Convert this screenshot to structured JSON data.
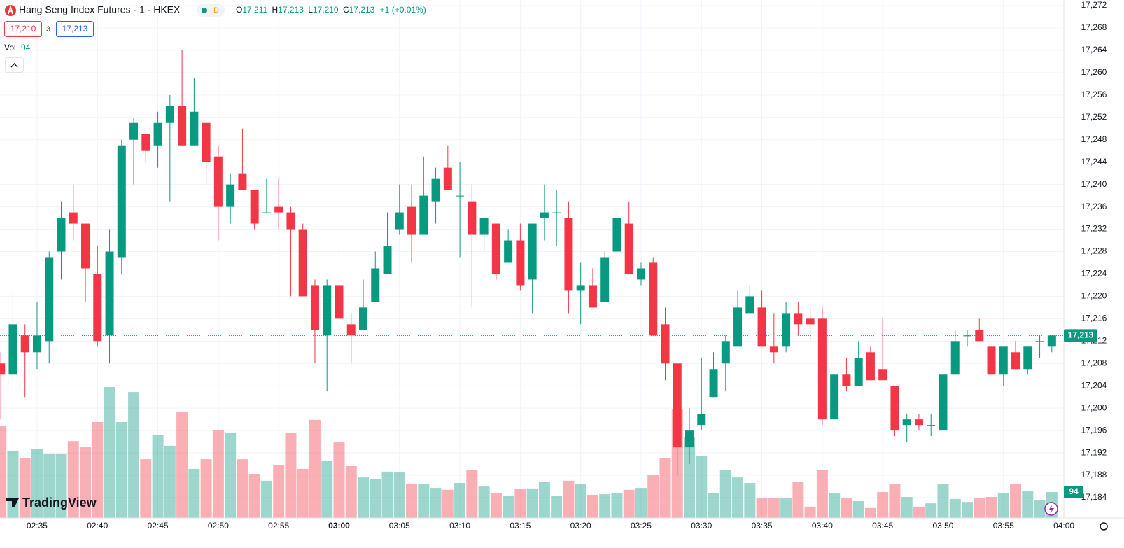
{
  "header": {
    "title": "Hang Seng Index Futures · 1 · HKEX",
    "badge": "D",
    "ohlc": [
      {
        "key": "O",
        "value": "17,211"
      },
      {
        "key": "H",
        "value": "17,213"
      },
      {
        "key": "L",
        "value": "17,210"
      },
      {
        "key": "C",
        "value": "17,213"
      }
    ],
    "change": "+1 (+0.01%)",
    "bid": "17,210",
    "spread": "3",
    "ask": "17,213",
    "volume_label": "Vol"
  },
  "watermark": "TradingView",
  "chart_data": {
    "type": "candlestick",
    "categories": [
      null,
      null,
      null,
      "02:35",
      null,
      null,
      null,
      null,
      "02:40",
      null,
      null,
      null,
      null,
      "02:45",
      null,
      null,
      null,
      null,
      "02:50",
      null,
      null,
      null,
      null,
      "02:55",
      null,
      null,
      null,
      null,
      "03:00",
      null,
      null,
      null,
      null,
      "03:05",
      null,
      null,
      null,
      null,
      "03:10",
      null,
      null,
      null,
      null,
      "03:15",
      null,
      null,
      null,
      null,
      "03:20",
      null,
      null,
      null,
      null,
      "03:25",
      null,
      null,
      null,
      null,
      "03:30",
      null,
      null,
      null,
      null,
      "03:35",
      null,
      null,
      null,
      null,
      "03:40",
      null,
      null,
      null,
      null,
      "03:45",
      null,
      null,
      null,
      null,
      "03:50",
      null,
      null,
      null,
      null,
      "03:55",
      null,
      null,
      null,
      null
    ],
    "x_edge_label": "04:00",
    "open": [
      17208,
      17206,
      17213,
      17210,
      17212,
      17228,
      17235,
      17233,
      17224,
      17213,
      17227,
      17248,
      17249,
      17247,
      17251,
      17254,
      17247,
      17251,
      17245,
      17236,
      17242,
      17239,
      17235,
      17236,
      17235,
      17232,
      17222,
      17213,
      17222,
      17215,
      17214,
      17219,
      17224,
      17232,
      17236,
      17231,
      17237,
      17243,
      17238,
      17237,
      17231,
      17233,
      17226,
      17230,
      17223,
      17234,
      17235,
      17234,
      17221,
      17222,
      17219,
      17228,
      17233,
      17223,
      17226,
      17215,
      17208,
      17193,
      17197,
      17202,
      17208,
      17211,
      17217,
      17218,
      17211,
      17211,
      17217,
      17216,
      17216,
      17198,
      17206,
      17204,
      17210,
      17207,
      17204,
      17197,
      17198,
      17197,
      17196,
      17206,
      17213,
      17214,
      17211,
      17206,
      17210,
      17207,
      17212,
      17211
    ],
    "high": [
      17210,
      17221,
      17215,
      17219,
      17228,
      17237,
      17240,
      17233,
      17229,
      17232,
      17248,
      17252,
      17249,
      17253,
      17256,
      17264,
      17259,
      17251,
      17247,
      17242,
      17250,
      17239,
      17241,
      17241,
      17236,
      17233,
      17223,
      17223,
      17229,
      17217,
      17223,
      17228,
      17235,
      17240,
      17240,
      17245,
      17243,
      17247,
      17244,
      17240,
      17234,
      17233,
      17232,
      17233,
      17233,
      17240,
      17239,
      17237,
      17226,
      17225,
      17228,
      17235,
      17237,
      17226,
      17227,
      17218,
      17208,
      17200,
      17209,
      17210,
      17213,
      17221,
      17222,
      17221,
      17217,
      17219,
      17219,
      17218,
      17218,
      17206,
      17209,
      17212,
      17211,
      17216,
      17204,
      17199,
      17199,
      17199,
      17210,
      17214,
      17214,
      17216,
      17211,
      17211,
      17212,
      17211,
      17213,
      17213
    ],
    "low": [
      17198,
      17202,
      17202,
      17207,
      17208,
      17223,
      17230,
      17219,
      17211,
      17208,
      17224,
      17240,
      17244,
      17243,
      17237,
      17247,
      17247,
      17240,
      17230,
      17233,
      17239,
      17232,
      17235,
      17232,
      17220,
      17220,
      17208,
      17203,
      17216,
      17208,
      17214,
      17219,
      17224,
      17231,
      17226,
      17231,
      17233,
      17239,
      17227,
      17218,
      17228,
      17223,
      17226,
      17221,
      17217,
      17230,
      17229,
      17217,
      17215,
      17218,
      17219,
      17228,
      17224,
      17222,
      17213,
      17205,
      17188,
      17190,
      17196,
      17202,
      17203,
      17211,
      17217,
      17211,
      17208,
      17210,
      17213,
      17212,
      17197,
      17198,
      17203,
      17204,
      17205,
      17205,
      17195,
      17194,
      17196,
      17195,
      17194,
      17206,
      17211,
      17212,
      17206,
      17204,
      17207,
      17206,
      17209,
      17210
    ],
    "close": [
      17206,
      17215,
      17210,
      17213,
      17227,
      17234,
      17233,
      17225,
      17212,
      17228,
      17247,
      17251,
      17246,
      17251,
      17254,
      17247,
      17253,
      17244,
      17236,
      17240,
      17239,
      17233,
      17235,
      17235,
      17232,
      17220,
      17214,
      17222,
      17216,
      17213,
      17218,
      17225,
      17229,
      17235,
      17231,
      17238,
      17241,
      17239,
      17238,
      17231,
      17234,
      17224,
      17230,
      17222,
      17233,
      17235,
      17235,
      17221,
      17222,
      17218,
      17227,
      17234,
      17224,
      17225,
      17213,
      17208,
      17193,
      17196,
      17199,
      17207,
      17212,
      17218,
      17220,
      17211,
      17210,
      17217,
      17215,
      17215,
      17198,
      17206,
      17204,
      17209,
      17205,
      17205,
      17196,
      17198,
      17197,
      17197,
      17206,
      17212,
      17213,
      17212,
      17206,
      17211,
      17207,
      17211,
      17212,
      17213
    ],
    "volume": [
      335,
      244,
      216,
      251,
      234,
      234,
      279,
      257,
      348,
      475,
      348,
      457,
      213,
      300,
      262,
      384,
      178,
      213,
      320,
      310,
      213,
      160,
      135,
      193,
      310,
      178,
      356,
      208,
      274,
      188,
      147,
      142,
      168,
      165,
      122,
      122,
      109,
      102,
      127,
      173,
      114,
      89,
      81,
      104,
      107,
      132,
      79,
      135,
      124,
      84,
      86,
      89,
      102,
      109,
      157,
      218,
      394,
      292,
      226,
      89,
      175,
      147,
      127,
      71,
      71,
      71,
      132,
      41,
      173,
      91,
      71,
      61,
      36,
      94,
      122,
      76,
      41,
      53,
      122,
      69,
      58,
      71,
      76,
      91,
      122,
      99,
      64,
      94
    ],
    "up_color": "#089981",
    "down_color": "#f23645",
    "ylim": [
      17184,
      17272
    ],
    "yticks": [
      {
        "value": 17184,
        "label": "17,184"
      },
      {
        "value": 17188,
        "label": "17,188"
      },
      {
        "value": 17192,
        "label": "17,192"
      },
      {
        "value": 17196,
        "label": "17,196"
      },
      {
        "value": 17200,
        "label": "17,200"
      },
      {
        "value": 17204,
        "label": "17,204"
      },
      {
        "value": 17208,
        "label": "17,208"
      },
      {
        "value": 17212,
        "label": "17,212"
      },
      {
        "value": 17216,
        "label": "17,216"
      },
      {
        "value": 17220,
        "label": "17,220"
      },
      {
        "value": 17224,
        "label": "17,224"
      },
      {
        "value": 17228,
        "label": "17,228"
      },
      {
        "value": 17232,
        "label": "17,232"
      },
      {
        "value": 17236,
        "label": "17,236"
      },
      {
        "value": 17240,
        "label": "17,240"
      },
      {
        "value": 17244,
        "label": "17,244"
      },
      {
        "value": 17248,
        "label": "17,248"
      },
      {
        "value": 17252,
        "label": "17,252"
      },
      {
        "value": 17256,
        "label": "17,256"
      },
      {
        "value": 17260,
        "label": "17,260"
      },
      {
        "value": 17264,
        "label": "17,264"
      },
      {
        "value": 17268,
        "label": "17,268"
      },
      {
        "value": 17272,
        "label": "17,272"
      }
    ],
    "last_price": {
      "value": 17213,
      "label": "17,213"
    },
    "grid": true
  }
}
